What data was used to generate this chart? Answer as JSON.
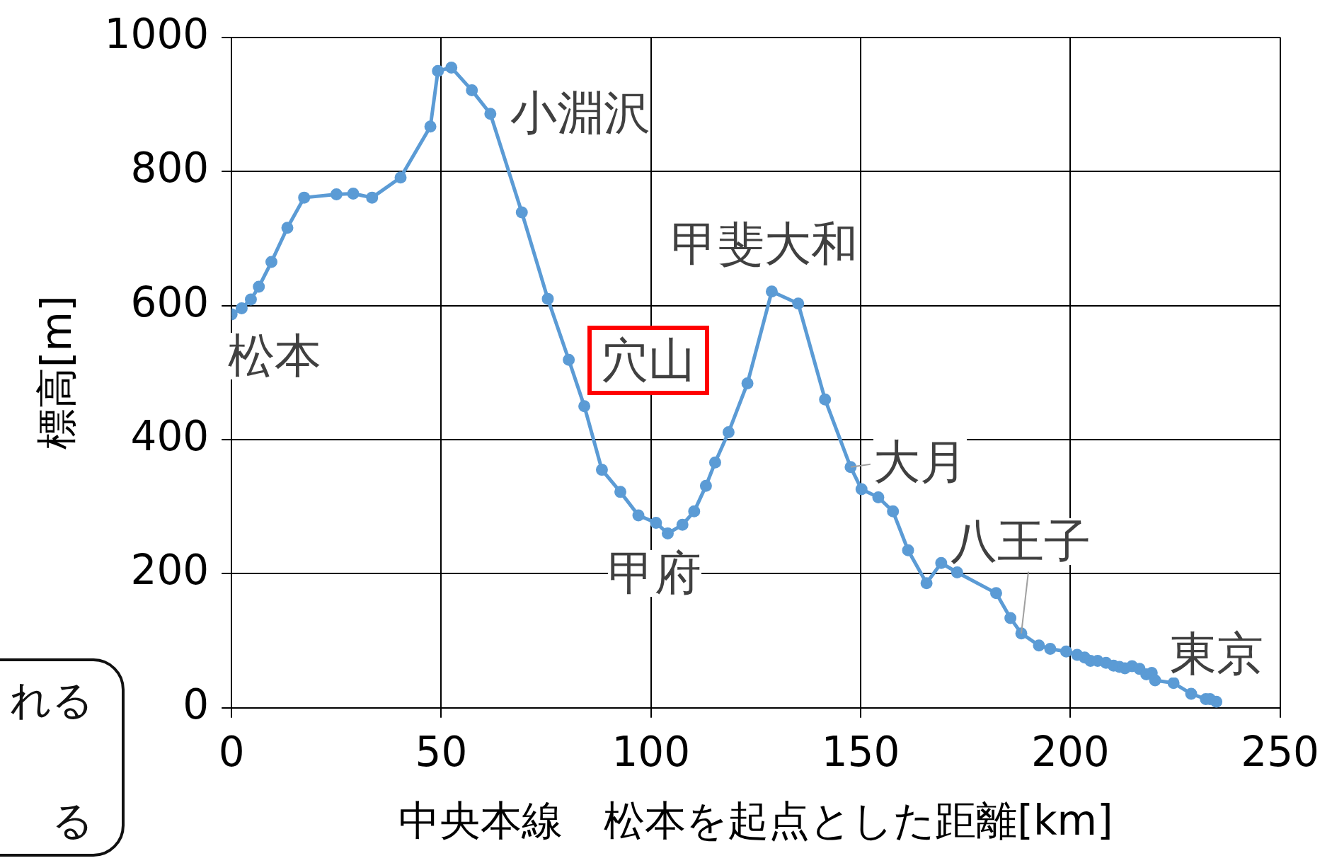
{
  "chart_data": {
    "type": "line",
    "xlabel": "中央本線　松本を起点とした距離[km]",
    "ylabel": "標高[m]",
    "x": [
      0,
      2.4,
      4.6,
      6.5,
      9.5,
      13.3,
      17.3,
      25,
      29,
      33.5,
      40.3,
      47.4,
      49.2,
      52.4,
      57.3,
      61.7,
      69.2,
      75.4,
      80.4,
      84.1,
      88.3,
      92.7,
      97,
      101.2,
      104,
      107.5,
      110.3,
      113.1,
      115.3,
      118.5,
      123,
      128.8,
      135.1,
      141.5,
      147.6,
      150.2,
      154.2,
      157.7,
      161.3,
      165.7,
      169.2,
      173,
      182.3,
      185.7,
      188.3,
      192.5,
      195.2,
      199,
      201.6,
      203.4,
      204.8,
      206.5,
      208.5,
      210.3,
      211.7,
      213,
      214.7,
      216.5,
      218.1,
      219.4,
      220.2,
      224.6,
      228.8,
      232.3,
      233.3,
      234.8
    ],
    "series": [
      {
        "color": "#5b9bd5",
        "values": [
          587,
          596,
          609,
          628,
          665,
          716,
          761,
          766,
          767,
          761,
          791,
          867,
          950,
          955,
          921,
          886,
          739,
          610,
          519,
          450,
          355,
          322,
          287,
          276,
          260,
          273,
          293,
          331,
          366,
          411,
          484,
          621,
          603,
          460,
          359,
          326,
          314,
          293,
          235,
          186,
          216,
          202,
          171,
          134,
          111,
          93,
          88,
          84,
          79,
          75,
          70,
          70,
          67,
          63,
          61,
          59,
          62,
          58,
          50,
          52,
          41,
          37,
          21,
          13,
          13,
          9
        ]
      }
    ],
    "xlim": [
      0,
      250
    ],
    "xticks": [
      0,
      50,
      100,
      150,
      200,
      250
    ],
    "ylim": [
      0,
      1000
    ],
    "yticks": [
      0,
      200,
      400,
      600,
      800,
      1000
    ],
    "grid": true,
    "legend": false,
    "marker": "circle",
    "line_style": "solid",
    "annotations": [
      {
        "text": "松本",
        "x": 0,
        "y": 587
      },
      {
        "text": "小淵沢",
        "x": 61.7,
        "y": 886
      },
      {
        "text": "穴山",
        "x": 80.4,
        "y": 519
      },
      {
        "text": "甲府",
        "x": 104,
        "y": 260
      },
      {
        "text": "甲斐大和",
        "x": 128.8,
        "y": 621
      },
      {
        "text": "大月",
        "x": 147.6,
        "y": 359
      },
      {
        "text": "八王子",
        "x": 188.3,
        "y": 111
      },
      {
        "text": "東京",
        "x": 234.8,
        "y": 9
      },
      "れる",
      "る"
    ]
  }
}
